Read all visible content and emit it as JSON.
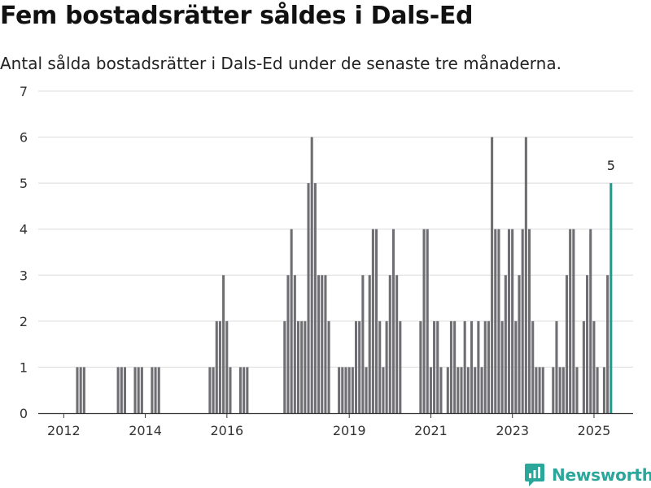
{
  "header": {
    "title": "Fem bostadsrätter såldes i Dals-Ed",
    "subtitle": "Antal sålda bostadsrätter i Dals-Ed under de senaste tre månaderna."
  },
  "brand": {
    "name": "Newsworthy",
    "icon": "newsworthy-logo-icon",
    "color": "#2aa69a"
  },
  "chart_data": {
    "type": "bar",
    "title": "Fem bostadsrätter såldes i Dals-Ed",
    "subtitle": "Antal sålda bostadsrätter i Dals-Ed under de senaste tre månaderna.",
    "xlabel": "",
    "ylabel": "",
    "ylim": [
      0,
      7
    ],
    "yticks": [
      0,
      1,
      2,
      3,
      4,
      5,
      6,
      7
    ],
    "xlim": [
      "2011-06",
      "2025-12"
    ],
    "xticks": [
      {
        "label": "2012",
        "x": "2012-01"
      },
      {
        "label": "2014",
        "x": "2014-01"
      },
      {
        "label": "2016",
        "x": "2016-01"
      },
      {
        "label": "2019",
        "x": "2019-01"
      },
      {
        "label": "2021",
        "x": "2021-01"
      },
      {
        "label": "2023",
        "x": "2023-01"
      },
      {
        "label": "2025",
        "x": "2025-01"
      }
    ],
    "grid": true,
    "bar_color": "#6e6e73",
    "highlight_color": "#1a9e8f",
    "highlight": {
      "x": "2025-06",
      "value": 5,
      "label": "5"
    },
    "points": [
      {
        "x": "2012-05",
        "value": 1
      },
      {
        "x": "2012-06",
        "value": 1
      },
      {
        "x": "2012-07",
        "value": 1
      },
      {
        "x": "2013-05",
        "value": 1
      },
      {
        "x": "2013-06",
        "value": 1
      },
      {
        "x": "2013-07",
        "value": 1
      },
      {
        "x": "2013-10",
        "value": 1
      },
      {
        "x": "2013-11",
        "value": 1
      },
      {
        "x": "2013-12",
        "value": 1
      },
      {
        "x": "2014-03",
        "value": 1
      },
      {
        "x": "2014-04",
        "value": 1
      },
      {
        "x": "2014-05",
        "value": 1
      },
      {
        "x": "2015-08",
        "value": 1
      },
      {
        "x": "2015-09",
        "value": 1
      },
      {
        "x": "2015-10",
        "value": 2
      },
      {
        "x": "2015-11",
        "value": 2
      },
      {
        "x": "2015-12",
        "value": 3
      },
      {
        "x": "2016-01",
        "value": 2
      },
      {
        "x": "2016-02",
        "value": 1
      },
      {
        "x": "2016-05",
        "value": 1
      },
      {
        "x": "2016-06",
        "value": 1
      },
      {
        "x": "2016-07",
        "value": 1
      },
      {
        "x": "2017-06",
        "value": 2
      },
      {
        "x": "2017-07",
        "value": 3
      },
      {
        "x": "2017-08",
        "value": 4
      },
      {
        "x": "2017-09",
        "value": 3
      },
      {
        "x": "2017-10",
        "value": 2
      },
      {
        "x": "2017-11",
        "value": 2
      },
      {
        "x": "2017-12",
        "value": 2
      },
      {
        "x": "2018-01",
        "value": 5
      },
      {
        "x": "2018-02",
        "value": 6
      },
      {
        "x": "2018-03",
        "value": 5
      },
      {
        "x": "2018-04",
        "value": 3
      },
      {
        "x": "2018-05",
        "value": 3
      },
      {
        "x": "2018-06",
        "value": 3
      },
      {
        "x": "2018-07",
        "value": 2
      },
      {
        "x": "2018-10",
        "value": 1
      },
      {
        "x": "2018-11",
        "value": 1
      },
      {
        "x": "2018-12",
        "value": 1
      },
      {
        "x": "2019-01",
        "value": 1
      },
      {
        "x": "2019-02",
        "value": 1
      },
      {
        "x": "2019-03",
        "value": 2
      },
      {
        "x": "2019-04",
        "value": 2
      },
      {
        "x": "2019-05",
        "value": 3
      },
      {
        "x": "2019-06",
        "value": 1
      },
      {
        "x": "2019-07",
        "value": 3
      },
      {
        "x": "2019-08",
        "value": 4
      },
      {
        "x": "2019-09",
        "value": 4
      },
      {
        "x": "2019-10",
        "value": 2
      },
      {
        "x": "2019-11",
        "value": 1
      },
      {
        "x": "2019-12",
        "value": 2
      },
      {
        "x": "2020-01",
        "value": 3
      },
      {
        "x": "2020-02",
        "value": 4
      },
      {
        "x": "2020-03",
        "value": 3
      },
      {
        "x": "2020-04",
        "value": 2
      },
      {
        "x": "2020-10",
        "value": 2
      },
      {
        "x": "2020-11",
        "value": 4
      },
      {
        "x": "2020-12",
        "value": 4
      },
      {
        "x": "2021-01",
        "value": 1
      },
      {
        "x": "2021-02",
        "value": 2
      },
      {
        "x": "2021-03",
        "value": 2
      },
      {
        "x": "2021-04",
        "value": 1
      },
      {
        "x": "2021-06",
        "value": 1
      },
      {
        "x": "2021-07",
        "value": 2
      },
      {
        "x": "2021-08",
        "value": 2
      },
      {
        "x": "2021-09",
        "value": 1
      },
      {
        "x": "2021-10",
        "value": 1
      },
      {
        "x": "2021-11",
        "value": 2
      },
      {
        "x": "2021-12",
        "value": 1
      },
      {
        "x": "2022-01",
        "value": 2
      },
      {
        "x": "2022-02",
        "value": 1
      },
      {
        "x": "2022-03",
        "value": 2
      },
      {
        "x": "2022-04",
        "value": 1
      },
      {
        "x": "2022-05",
        "value": 2
      },
      {
        "x": "2022-06",
        "value": 2
      },
      {
        "x": "2022-07",
        "value": 6
      },
      {
        "x": "2022-08",
        "value": 4
      },
      {
        "x": "2022-09",
        "value": 4
      },
      {
        "x": "2022-10",
        "value": 2
      },
      {
        "x": "2022-11",
        "value": 3
      },
      {
        "x": "2022-12",
        "value": 4
      },
      {
        "x": "2023-01",
        "value": 4
      },
      {
        "x": "2023-02",
        "value": 2
      },
      {
        "x": "2023-03",
        "value": 3
      },
      {
        "x": "2023-04",
        "value": 4
      },
      {
        "x": "2023-05",
        "value": 6
      },
      {
        "x": "2023-06",
        "value": 4
      },
      {
        "x": "2023-07",
        "value": 2
      },
      {
        "x": "2023-08",
        "value": 1
      },
      {
        "x": "2023-09",
        "value": 1
      },
      {
        "x": "2023-10",
        "value": 1
      },
      {
        "x": "2024-01",
        "value": 1
      },
      {
        "x": "2024-02",
        "value": 2
      },
      {
        "x": "2024-03",
        "value": 1
      },
      {
        "x": "2024-04",
        "value": 1
      },
      {
        "x": "2024-05",
        "value": 3
      },
      {
        "x": "2024-06",
        "value": 4
      },
      {
        "x": "2024-07",
        "value": 4
      },
      {
        "x": "2024-08",
        "value": 1
      },
      {
        "x": "2024-10",
        "value": 2
      },
      {
        "x": "2024-11",
        "value": 3
      },
      {
        "x": "2024-12",
        "value": 4
      },
      {
        "x": "2025-01",
        "value": 2
      },
      {
        "x": "2025-02",
        "value": 1
      },
      {
        "x": "2025-04",
        "value": 1
      },
      {
        "x": "2025-05",
        "value": 3
      },
      {
        "x": "2025-06",
        "value": 5
      }
    ]
  }
}
